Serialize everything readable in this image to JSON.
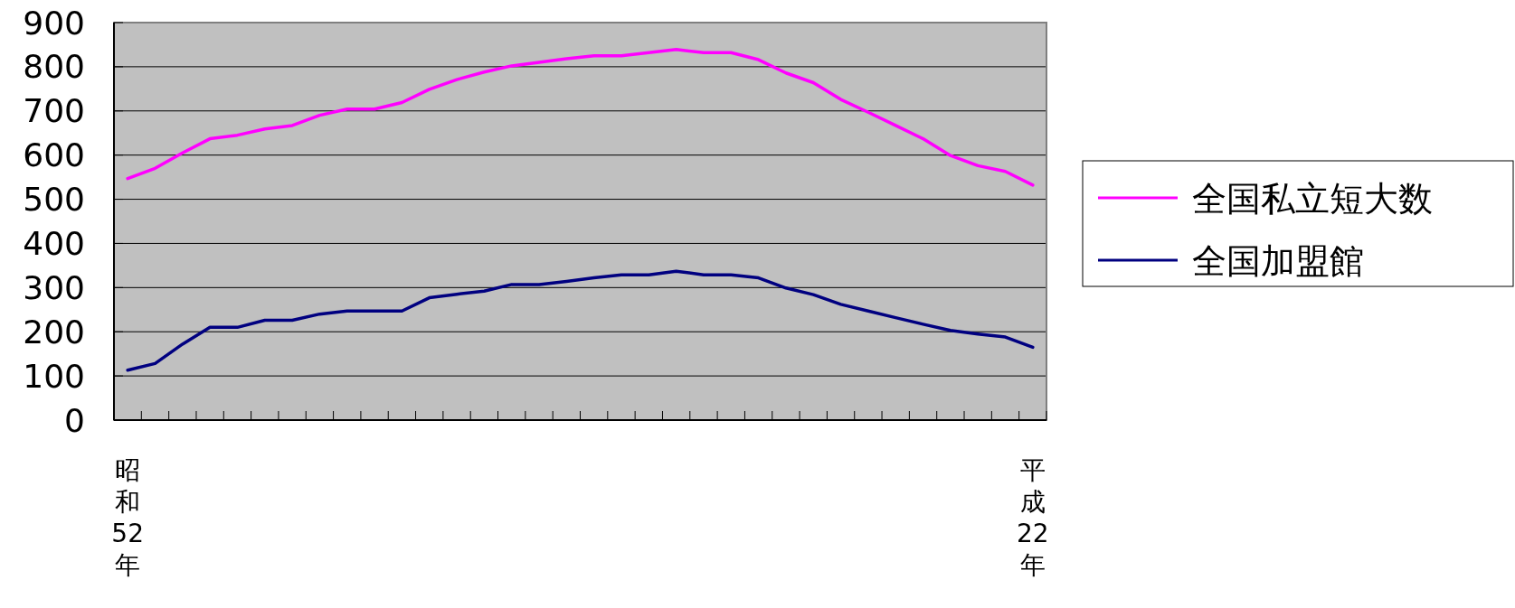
{
  "chart_data": {
    "type": "line",
    "categories": [
      "昭和52年",
      null,
      null,
      null,
      null,
      null,
      null,
      null,
      null,
      null,
      null,
      null,
      null,
      null,
      null,
      null,
      null,
      null,
      null,
      null,
      null,
      null,
      null,
      null,
      null,
      null,
      null,
      null,
      null,
      null,
      null,
      null,
      null,
      "平成22年"
    ],
    "series": [
      {
        "name": "全国私立短大数",
        "color": "#ff00ff",
        "values": [
          547,
          570,
          605,
          637,
          645,
          659,
          667,
          690,
          704,
          704,
          719,
          749,
          771,
          788,
          802,
          810,
          818,
          825,
          825,
          832,
          839,
          832,
          832,
          816,
          786,
          764,
          726,
          697,
          667,
          637,
          599,
          576,
          563,
          532
        ]
      },
      {
        "name": "全国加盟館",
        "color": "#000080",
        "values": [
          113,
          128,
          172,
          210,
          210,
          226,
          226,
          240,
          247,
          247,
          247,
          277,
          285,
          292,
          307,
          307,
          314,
          322,
          329,
          329,
          337,
          329,
          329,
          322,
          299,
          284,
          262,
          247,
          232,
          217,
          203,
          195,
          188,
          165
        ]
      }
    ],
    "ylim": [
      0,
      900
    ],
    "yticks": [
      0,
      100,
      200,
      300,
      400,
      500,
      600,
      700,
      800,
      900
    ],
    "grid": "y",
    "legend": "right",
    "marker": "none",
    "line_style": "solid"
  }
}
